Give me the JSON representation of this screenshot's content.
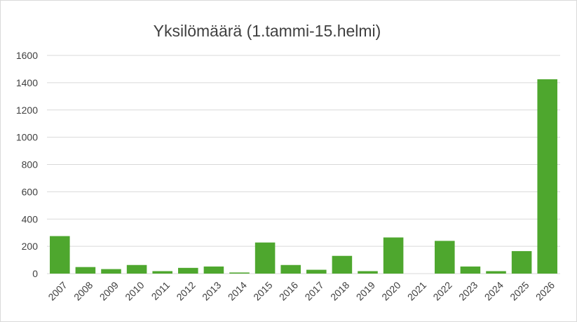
{
  "chart_data": {
    "type": "bar",
    "title": "Yksilömäärä (1.tammi-15.helmi)",
    "xlabel": "",
    "ylabel": "",
    "categories": [
      "2007",
      "2008",
      "2009",
      "2010",
      "2011",
      "2012",
      "2013",
      "2014",
      "2015",
      "2016",
      "2017",
      "2018",
      "2019",
      "2020",
      "2021",
      "2022",
      "2023",
      "2024",
      "2025",
      "2026"
    ],
    "values": [
      275,
      48,
      33,
      63,
      18,
      42,
      52,
      8,
      228,
      63,
      28,
      130,
      18,
      265,
      0,
      240,
      52,
      18,
      165,
      1425
    ],
    "ylim": [
      0,
      1600
    ],
    "yticks": [
      0,
      200,
      400,
      600,
      800,
      1000,
      1200,
      1400,
      1600
    ],
    "grid": "horizontal",
    "colors": {
      "bar": "#4ea72e",
      "grid": "#d9d9d9",
      "text": "#404040"
    }
  }
}
